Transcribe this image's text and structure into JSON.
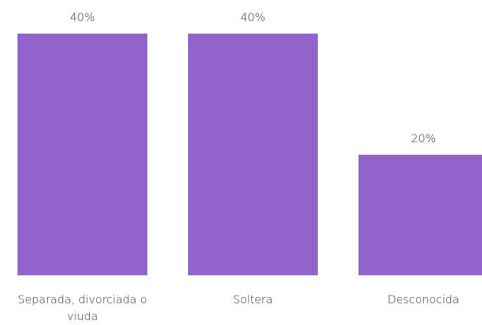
{
  "chart_data": {
    "type": "bar",
    "categories": [
      "Separada, divorciada o viuda",
      "Soltera",
      "Desconocida"
    ],
    "values": [
      40,
      40,
      20
    ],
    "value_labels": [
      "40%",
      "40%",
      "20%"
    ],
    "color": "#9163cb"
  }
}
